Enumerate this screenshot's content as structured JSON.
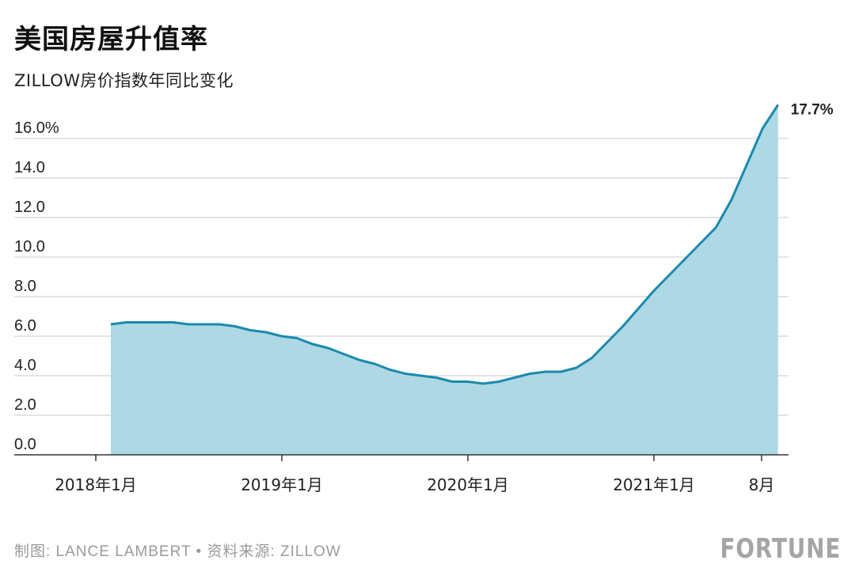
{
  "header": {
    "title": "美国房屋升值率",
    "subtitle": "ZILLOW房价指数年同比变化"
  },
  "footer": {
    "credit": "制图: LANCE LAMBERT • 资料来源: ZILLOW",
    "brand": "FORTUNE"
  },
  "chart_data": {
    "type": "area",
    "title": "美国房屋升值率",
    "subtitle": "ZILLOW房价指数年同比变化",
    "xlabel": "",
    "ylabel": "",
    "ylim": [
      0,
      16
    ],
    "yticks": [
      0,
      2,
      4,
      6,
      8,
      10,
      12,
      14,
      16
    ],
    "ytick_labels": [
      "0.0",
      "2.0",
      "4.0",
      "6.0",
      "8.0",
      "10.0",
      "12.0",
      "14.0",
      "16.0%"
    ],
    "xticks": [
      {
        "label": "2018年1月",
        "index": 0
      },
      {
        "label": "2019年1月",
        "index": 12
      },
      {
        "label": "2020年1月",
        "index": 24
      },
      {
        "label": "2021年1月",
        "index": 36
      },
      {
        "label": "8月",
        "index": 43
      }
    ],
    "x": [
      "2018-01",
      "2018-02",
      "2018-03",
      "2018-04",
      "2018-05",
      "2018-06",
      "2018-07",
      "2018-08",
      "2018-09",
      "2018-10",
      "2018-11",
      "2018-12",
      "2019-01",
      "2019-02",
      "2019-03",
      "2019-04",
      "2019-05",
      "2019-06",
      "2019-07",
      "2019-08",
      "2019-09",
      "2019-10",
      "2019-11",
      "2019-12",
      "2020-01",
      "2020-02",
      "2020-03",
      "2020-04",
      "2020-05",
      "2020-06",
      "2020-07",
      "2020-08",
      "2020-09",
      "2020-10",
      "2020-11",
      "2020-12",
      "2021-01",
      "2021-02",
      "2021-03",
      "2021-04",
      "2021-05",
      "2021-06",
      "2021-07",
      "2021-08"
    ],
    "series": [
      {
        "values": [
          6.6,
          6.7,
          6.7,
          6.7,
          6.7,
          6.6,
          6.6,
          6.6,
          6.5,
          6.3,
          6.2,
          6.0,
          5.9,
          5.6,
          5.4,
          5.1,
          4.8,
          4.6,
          4.3,
          4.1,
          4.0,
          3.9,
          3.7,
          3.7,
          3.6,
          3.7,
          3.9,
          4.1,
          4.2,
          4.2,
          4.4,
          4.9,
          5.7,
          6.5,
          7.4,
          8.3,
          9.1,
          9.9,
          10.7,
          11.5,
          12.9,
          14.7,
          16.5,
          17.7
        ]
      }
    ],
    "end_label": "17.7%",
    "colors": {
      "line": "#1a8aad",
      "fill": "#add8e4",
      "grid": "#c8c8c8",
      "axis": "#333333"
    },
    "grid": true
  }
}
